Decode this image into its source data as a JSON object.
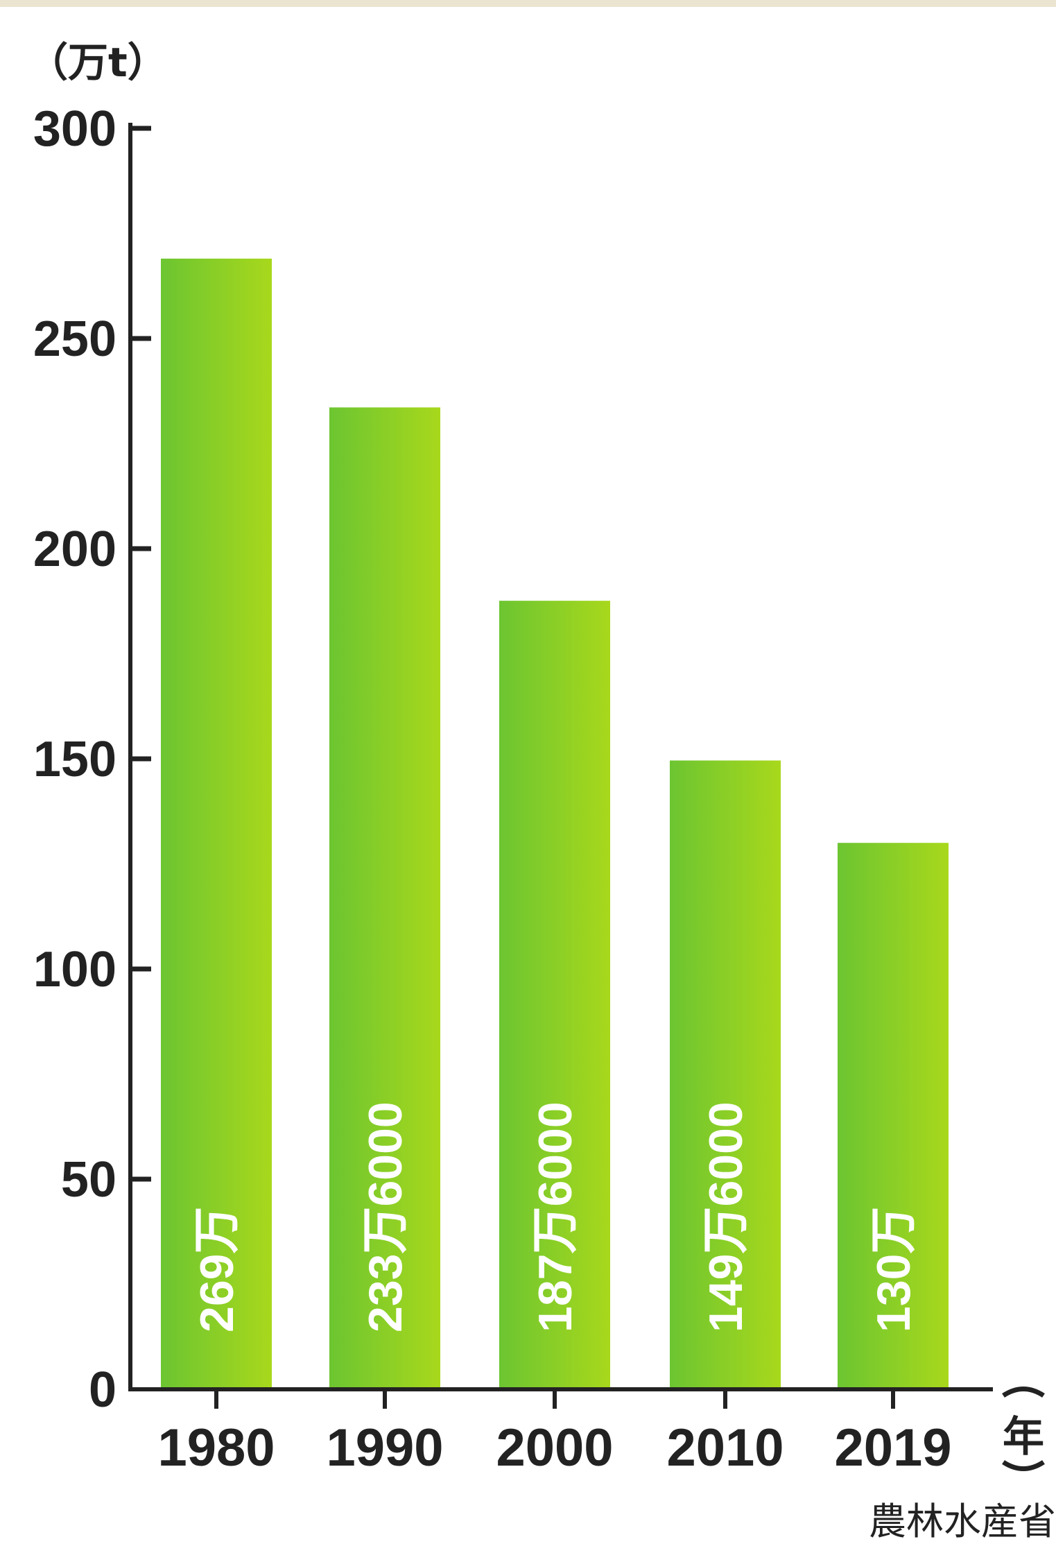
{
  "chart_data": {
    "type": "bar",
    "title": "",
    "categories": [
      "1980",
      "1990",
      "2000",
      "2010",
      "2019"
    ],
    "values": [
      269,
      233.6,
      187.6,
      149.6,
      130
    ],
    "bar_labels": [
      "269万",
      "233万6000",
      "187万6000",
      "149万6000",
      "130万"
    ],
    "y_ticks": [
      0,
      50,
      100,
      150,
      200,
      250,
      300
    ],
    "ylim": [
      0,
      300
    ],
    "ylabel": "（万t）",
    "xlabel": "（年）",
    "grid": false,
    "source": "農林水産省",
    "bar_gradient": [
      "#6cc531",
      "#a8d81c"
    ]
  }
}
